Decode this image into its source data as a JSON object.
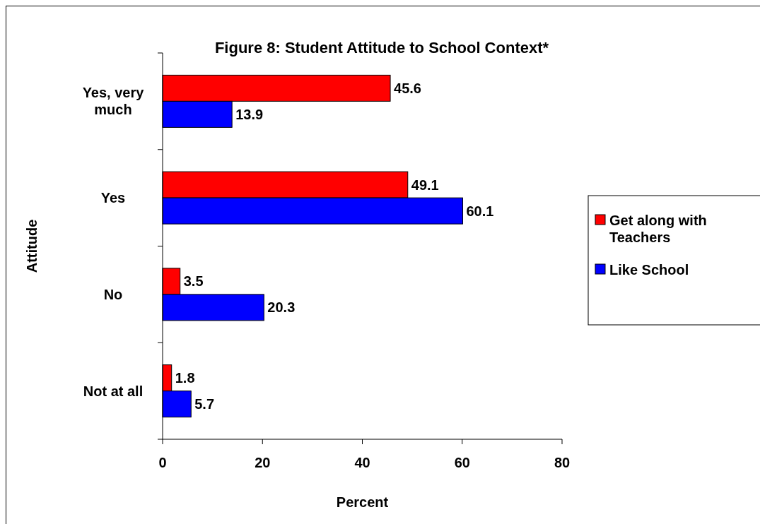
{
  "chart_data": {
    "type": "bar",
    "orientation": "horizontal",
    "title": "Figure 8: Student Attitude to School Context*",
    "xlabel": "Percent",
    "ylabel": "Attitude",
    "categories": [
      "Yes, very much",
      "Yes",
      "No",
      "Not at all"
    ],
    "series": [
      {
        "name": "Get along with Teachers",
        "color": "#ff0000",
        "values": [
          45.6,
          49.1,
          3.5,
          1.8
        ]
      },
      {
        "name": "Like School",
        "color": "#0000ff",
        "values": [
          13.9,
          60.1,
          20.3,
          5.7
        ]
      }
    ],
    "xlim": [
      0,
      80
    ],
    "xticks": [
      0,
      20,
      40,
      60,
      80
    ],
    "data_labels": true,
    "legend": "right",
    "grid": false
  }
}
